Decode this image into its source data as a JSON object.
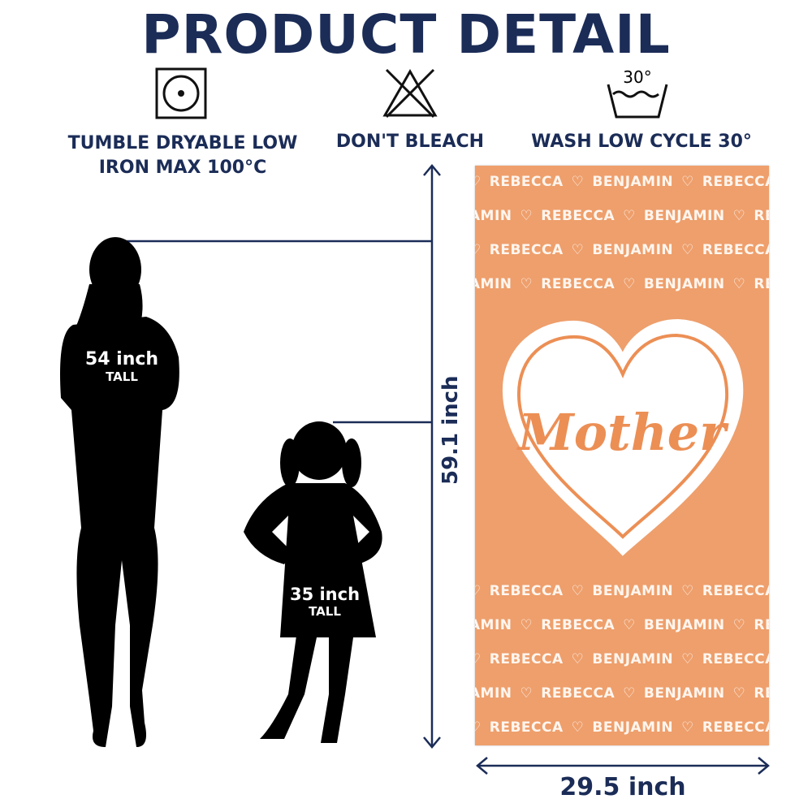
{
  "title": "PRODUCT DETAIL",
  "care": [
    {
      "icon": "tumble-dry-icon",
      "lines": [
        "TUMBLE DRYABLE LOW",
        "IRON MAX 100°C"
      ]
    },
    {
      "icon": "no-bleach-icon",
      "lines": [
        "DON'T BLEACH"
      ]
    },
    {
      "icon": "wash-30-icon",
      "icon_text": "30°",
      "lines": [
        "WASH LOW CYCLE 30°"
      ]
    }
  ],
  "woman": {
    "size": "54 inch",
    "label": "TALL"
  },
  "girl": {
    "size": "35 inch",
    "label": "TALL"
  },
  "towel": {
    "height": "59.1 inch",
    "width": "29.5 inch",
    "center_text": "Mother",
    "pattern_names": [
      "REBECCA",
      "BENJAMIN"
    ],
    "color": "#ee9f6c"
  },
  "colors": {
    "navy": "#1b2c57"
  }
}
